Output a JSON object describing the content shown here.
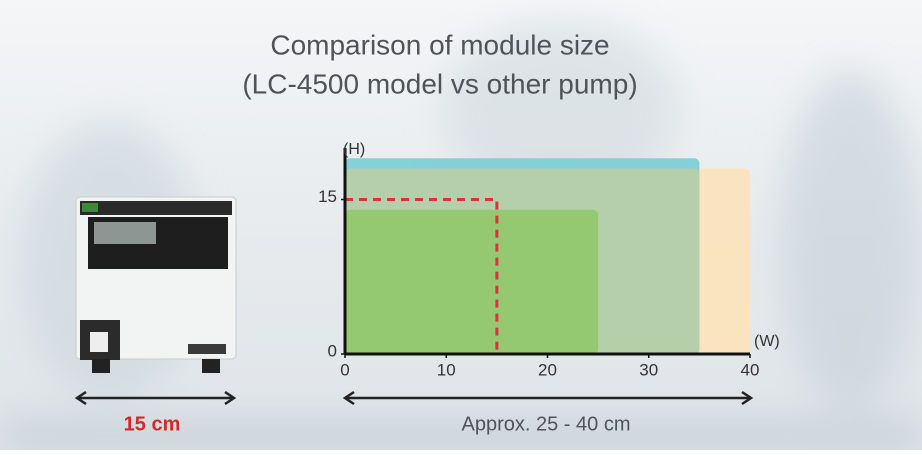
{
  "chart_data": {
    "type": "boxes",
    "title": "Comparison of module size",
    "subtitle": "(LC-4500 model vs other pump)",
    "y_label": "(H)",
    "x_label": "(W)",
    "xlim": [
      0,
      40
    ],
    "ylim": [
      0,
      20
    ],
    "xticks": [
      0,
      10,
      20,
      30,
      40
    ],
    "yticks": [
      0,
      15
    ],
    "boxes": [
      {
        "w": 40,
        "h": 18,
        "color": "#fbe3bd",
        "style": "solid"
      },
      {
        "w": 35,
        "h": 19,
        "color": "#7fcfd6",
        "style": "solid"
      },
      {
        "w": 35,
        "h": 18,
        "color": "#b7cfa9",
        "style": "solid"
      },
      {
        "w": 25,
        "h": 14,
        "color": "#93c86e",
        "style": "solid"
      },
      {
        "w": 15,
        "h": 15,
        "color": "#e0303a",
        "style": "dashed"
      }
    ],
    "annotations": [
      "15 cm",
      "Approx. 25 - 40 cm"
    ]
  }
}
